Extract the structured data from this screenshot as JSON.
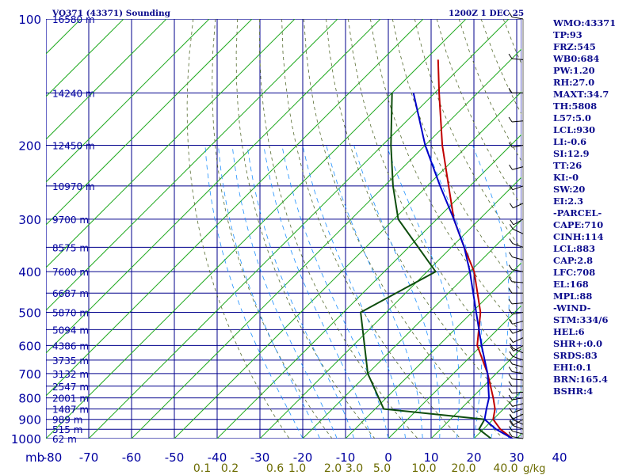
{
  "header": {
    "title": "VO371 (43371) Sounding",
    "time": "1200Z  1 DEC 25"
  },
  "chart_data": {
    "type": "line",
    "diagram": "skew-T log-P",
    "pressure_ticks": [
      "100",
      "200",
      "300",
      "400",
      "500",
      "600",
      "700",
      "800",
      "900",
      "1000"
    ],
    "pressure_levels": [
      100,
      200,
      300,
      400,
      500,
      600,
      700,
      800,
      900,
      1000
    ],
    "height_labels": [
      {
        "p": 100,
        "text": "16580 m"
      },
      {
        "p": 150,
        "text": "14240 m"
      },
      {
        "p": 200,
        "text": "12450 m"
      },
      {
        "p": 250,
        "text": "10970 m"
      },
      {
        "p": 300,
        "text": "9700 m"
      },
      {
        "p": 350,
        "text": "8575 m"
      },
      {
        "p": 400,
        "text": "7600 m"
      },
      {
        "p": 450,
        "text": "6687 m"
      },
      {
        "p": 500,
        "text": "5870 m"
      },
      {
        "p": 550,
        "text": "5094 m"
      },
      {
        "p": 600,
        "text": "4386 m"
      },
      {
        "p": 650,
        "text": "3735 m"
      },
      {
        "p": 700,
        "text": "3132 m"
      },
      {
        "p": 750,
        "text": "2547 m"
      },
      {
        "p": 800,
        "text": "2001 m"
      },
      {
        "p": 850,
        "text": "1487 m"
      },
      {
        "p": 900,
        "text": "989 m"
      },
      {
        "p": 950,
        "text": "515 m"
      },
      {
        "p": 1000,
        "text": "62 m"
      }
    ],
    "temp_axis_unit": "mb",
    "temp_ticks": [
      -80,
      -70,
      -60,
      -50,
      -40,
      -30,
      -20,
      -10,
      0,
      10,
      20,
      30,
      40
    ],
    "temp_tick_labels": [
      "-80",
      "-70",
      "-60",
      "-50",
      "-40",
      "-30",
      "-20",
      "-10",
      "0",
      "10",
      "20",
      "30",
      "40"
    ],
    "mixing_ratio_ticks": [
      "0.1",
      "0.2",
      "0.6",
      "1.0",
      "2.0",
      "3.0",
      "5.0",
      "10.0",
      "20.0",
      "40.0"
    ],
    "mixing_ratio_values": [
      0.1,
      0.2,
      0.6,
      1.0,
      2.0,
      3.0,
      5.0,
      10.0,
      20.0,
      40.0
    ],
    "mixing_ratio_unit": "g/kg",
    "temperature_profile": [
      {
        "p": 1000,
        "t": 29
      },
      {
        "p": 950,
        "t": 24
      },
      {
        "p": 900,
        "t": 20
      },
      {
        "p": 850,
        "t": 18
      },
      {
        "p": 800,
        "t": 15
      },
      {
        "p": 700,
        "t": 8
      },
      {
        "p": 600,
        "t": -1
      },
      {
        "p": 500,
        "t": -8
      },
      {
        "p": 400,
        "t": -19
      },
      {
        "p": 350,
        "t": -27
      },
      {
        "p": 300,
        "t": -36
      },
      {
        "p": 250,
        "t": -45
      },
      {
        "p": 200,
        "t": -56
      },
      {
        "p": 150,
        "t": -69
      },
      {
        "p": 125,
        "t": -77
      }
    ],
    "dewpoint_profile": [
      {
        "p": 1000,
        "t": 24
      },
      {
        "p": 950,
        "t": 19
      },
      {
        "p": 900,
        "t": 18
      },
      {
        "p": 850,
        "t": -8
      },
      {
        "p": 700,
        "t": -20
      },
      {
        "p": 500,
        "t": -36
      },
      {
        "p": 400,
        "t": -28
      },
      {
        "p": 300,
        "t": -49
      },
      {
        "p": 250,
        "t": -58
      },
      {
        "p": 200,
        "t": -68
      },
      {
        "p": 150,
        "t": -80
      }
    ],
    "parcel_profile": [
      {
        "p": 1000,
        "t": 29
      },
      {
        "p": 950,
        "t": 23
      },
      {
        "p": 900,
        "t": 18
      },
      {
        "p": 850,
        "t": 16
      },
      {
        "p": 800,
        "t": 14
      },
      {
        "p": 700,
        "t": 8
      },
      {
        "p": 600,
        "t": 0
      },
      {
        "p": 500,
        "t": -9
      },
      {
        "p": 400,
        "t": -20
      },
      {
        "p": 350,
        "t": -27
      },
      {
        "p": 300,
        "t": -36
      },
      {
        "p": 250,
        "t": -47
      },
      {
        "p": 200,
        "t": -60
      },
      {
        "p": 150,
        "t": -75
      }
    ],
    "colors": {
      "background": "#ffffff",
      "axes": "#0000a0",
      "grid": "#00008b",
      "isotherm": "#22aa22",
      "dry_adiabat": "#556b2f",
      "moist_adiabat": "#1e90ff",
      "temperature": "#c00000",
      "dewpoint": "#0d4d0d",
      "parcel": "#0000c8",
      "wind_barbs": "#000000",
      "mixing_ratio_labels": "#6b6b00"
    },
    "wind_barbs": "drawn on the right edge for each level"
  },
  "stations_params": [
    "WMO:43371",
    "TP:93",
    "FRZ:545",
    "WB0:684",
    "PW:1.20",
    "RH:27.0",
    "MAXT:34.7",
    "TH:5808",
    "L57:5.0",
    "LCL:930",
    "LI:-0.6",
    "SI:12.9",
    "TT:26",
    "KI:-0",
    "SW:20",
    "EI:2.3",
    "-PARCEL-",
    "CAPE:710",
    "CINH:114",
    "LCL:883",
    "CAP:2.8",
    "LFC:708",
    "EL:168",
    "MPL:88",
    "-WIND-",
    "STM:334/6",
    "HEL:6",
    "SHR+:0.0",
    "SRDS:83",
    "EHI:0.1",
    "BRN:165.4",
    "BSHR:4"
  ]
}
